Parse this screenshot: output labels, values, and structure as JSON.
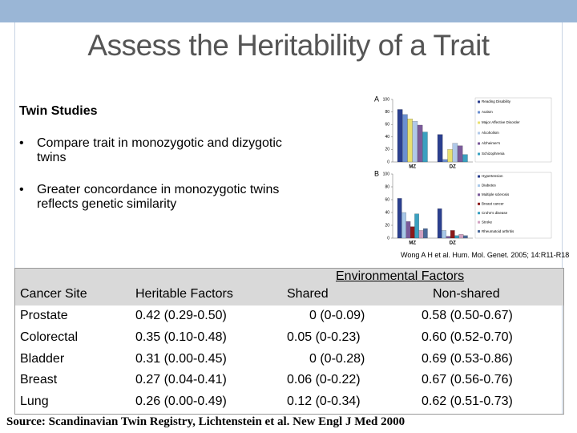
{
  "title": "Assess the Heritability of a Trait",
  "section": {
    "heading": "Twin Studies",
    "bullets": [
      "Compare trait in monozygotic and dizygotic twins",
      "Greater concordance in monozygotic twins reflects genetic similarity"
    ]
  },
  "figure": {
    "citation": "Wong A H et al. Hum. Mol. Genet. 2005; 14:R11-R18",
    "panels": [
      {
        "type": "bar",
        "label": "A",
        "categories": [
          "MZ",
          "DZ"
        ],
        "ylim": [
          0,
          100
        ],
        "yticks": [
          0,
          20,
          40,
          60,
          80,
          100
        ],
        "series": [
          {
            "name": "Reading Disability",
            "color": "#2b3f8f",
            "values": [
              84,
              44
            ]
          },
          {
            "name": "Autism",
            "color": "#6b8fd0",
            "values": [
              76,
              4
            ]
          },
          {
            "name": "Major Affective Disorder",
            "color": "#e8e070",
            "values": [
              69,
              20
            ]
          },
          {
            "name": "Alcoholism",
            "color": "#b0c8e8",
            "values": [
              65,
              30
            ]
          },
          {
            "name": "Alzheimer's",
            "color": "#7a5a9a",
            "values": [
              59,
              26
            ]
          },
          {
            "name": "Schizophrenia",
            "color": "#3aa0c0",
            "values": [
              48,
              12
            ]
          }
        ]
      },
      {
        "type": "bar",
        "label": "B",
        "categories": [
          "MZ",
          "DZ"
        ],
        "ylim": [
          0,
          100
        ],
        "yticks": [
          0,
          20,
          40,
          60,
          80,
          100
        ],
        "series": [
          {
            "name": "Hypertension",
            "color": "#2b3f8f",
            "values": [
              62,
              46
            ]
          },
          {
            "name": "Diabetes",
            "color": "#a8c8e8",
            "values": [
              40,
              12
            ]
          },
          {
            "name": "Multiple sclerosis",
            "color": "#7a5a9a",
            "values": [
              26,
              3
            ]
          },
          {
            "name": "Breast cancer",
            "color": "#8b1a1a",
            "values": [
              18,
              12
            ]
          },
          {
            "name": "Crohn's disease",
            "color": "#3aa0c0",
            "values": [
              38,
              4
            ]
          },
          {
            "name": "Stroke",
            "color": "#d0a0c0",
            "values": [
              12,
              6
            ]
          },
          {
            "name": "Rheumatoid arthritis",
            "color": "#4a6a9a",
            "values": [
              15,
              4
            ]
          }
        ]
      }
    ]
  },
  "table": {
    "group_header": "Environmental Factors",
    "header": [
      "Cancer Site",
      "Heritable Factors",
      "Shared",
      "Non-shared"
    ],
    "rows": [
      [
        "Prostate",
        "0.42 (0.29-0.50)",
        "0 (0-0.09)",
        "0.58 (0.50-0.67)"
      ],
      [
        "Colorectal",
        "0.35 (0.10-0.48)",
        "0.05 (0-0.23)",
        "0.60 (0.52-0.70)"
      ],
      [
        "Bladder",
        "0.31 (0.00-0.45)",
        "0 (0-0.28)",
        "0.69 (0.53-0.86)"
      ],
      [
        "Breast",
        "0.27 (0.04-0.41)",
        "0.06 (0-0.22)",
        "0.67 (0.56-0.76)"
      ],
      [
        "Lung",
        "0.26 (0.00-0.49)",
        "0.12 (0-0.34)",
        "0.62 (0.51-0.73)"
      ]
    ]
  },
  "source": "Source: Scandinavian Twin Registry, Lichtenstein et al. New Engl J Med 2000"
}
